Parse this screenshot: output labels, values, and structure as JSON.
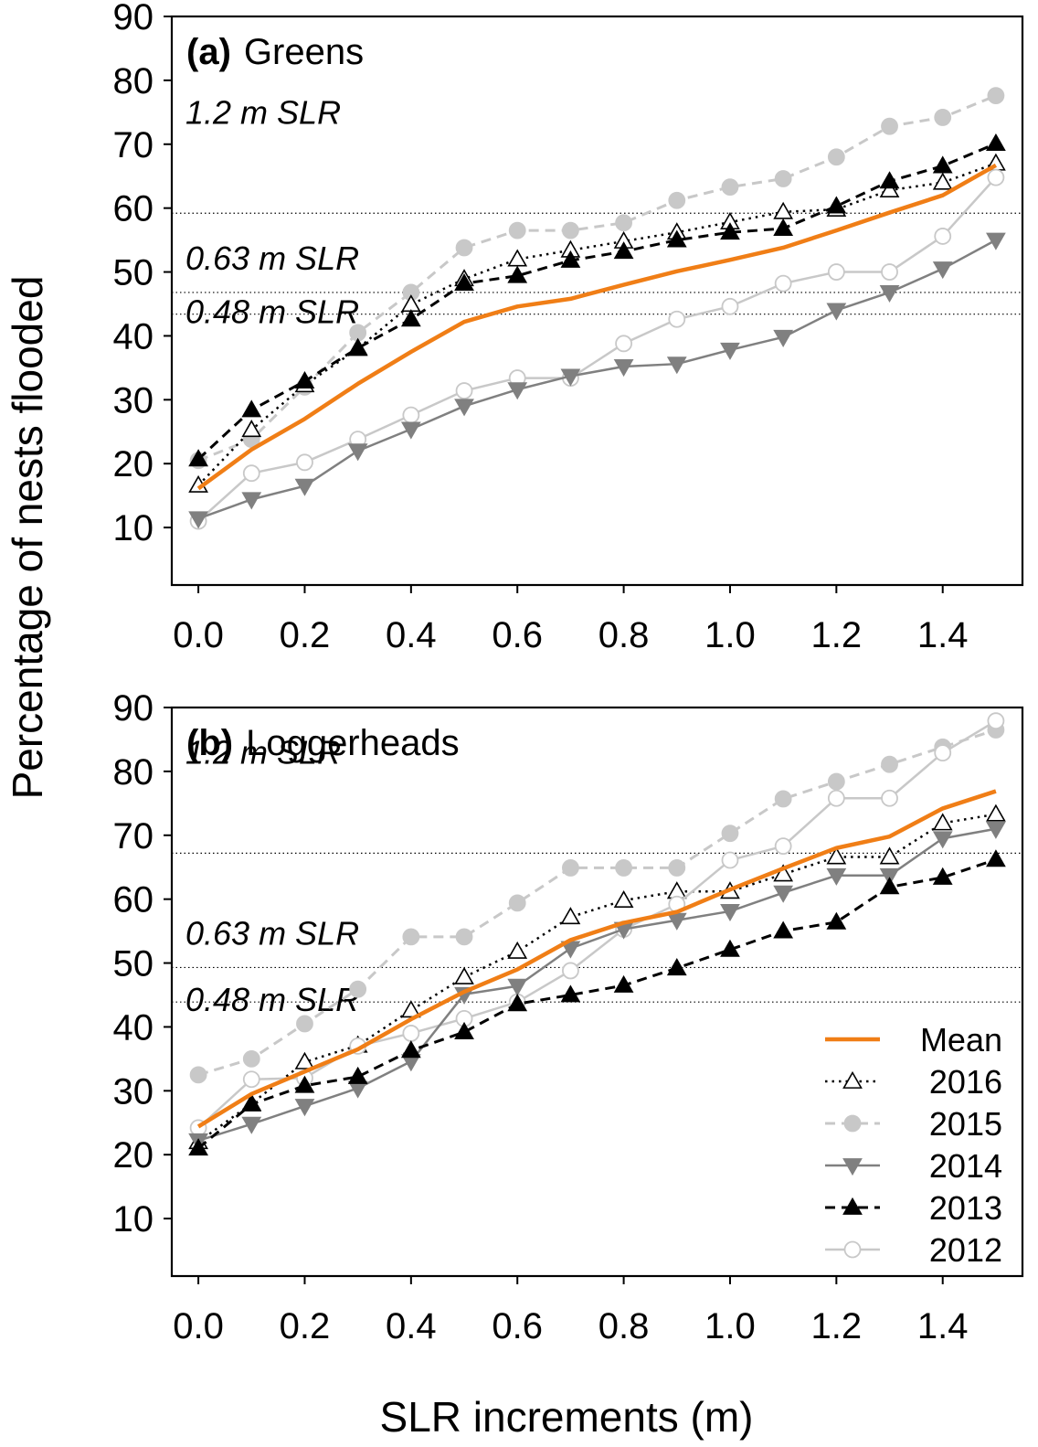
{
  "figure": {
    "ylabel": "Percentage of nests flooded",
    "xlabel": "SLR increments (m)"
  },
  "legend": {
    "placement": "bottom-right of panel (b)",
    "entries": [
      "Mean",
      "2016",
      "2015",
      "2014",
      "2013",
      "2012"
    ]
  },
  "chart_data": [
    {
      "type": "line",
      "panel_letter": "(a)",
      "panel_name": "Greens",
      "x": [
        0.0,
        0.1,
        0.2,
        0.3,
        0.4,
        0.5,
        0.6,
        0.7,
        0.8,
        0.9,
        1.0,
        1.1,
        1.2,
        1.3,
        1.4,
        1.5
      ],
      "xticks": [
        "0.0",
        "0.2",
        "0.4",
        "0.6",
        "0.8",
        "1.0",
        "1.2",
        "1.4"
      ],
      "yticks": [
        "10",
        "20",
        "30",
        "40",
        "50",
        "60",
        "70",
        "80",
        "90"
      ],
      "xlim": [
        -0.05,
        1.55
      ],
      "ylim": [
        1,
        90
      ],
      "grid": false,
      "reference_lines": [
        {
          "label": "1.2 m SLR",
          "y": 59.2
        },
        {
          "label": "0.63 m SLR",
          "y": 46.8
        },
        {
          "label": "0.48 m SLR",
          "y": 43.4
        }
      ],
      "series": [
        {
          "name": "2015",
          "style": "dashed",
          "color": "#c8c8c8",
          "marker": "filled-circle",
          "values": [
            20.5,
            23.8,
            32.0,
            40.5,
            46.8,
            53.8,
            56.5,
            56.5,
            57.7,
            61.2,
            63.3,
            64.6,
            68.0,
            72.8,
            74.2,
            77.6
          ]
        },
        {
          "name": "2016",
          "style": "dotted",
          "color": "#000000",
          "marker": "open-triangle-up",
          "values": [
            16.6,
            25.3,
            32.3,
            38.0,
            44.9,
            48.9,
            52.0,
            53.4,
            54.8,
            56.2,
            57.8,
            59.4,
            59.8,
            62.8,
            64.0,
            67.0
          ]
        },
        {
          "name": "2013",
          "style": "dashed",
          "color": "#000000",
          "marker": "filled-triangle-up",
          "values": [
            20.7,
            28.4,
            32.9,
            38.1,
            42.6,
            48.2,
            49.4,
            51.8,
            53.2,
            55.0,
            56.2,
            56.8,
            60.3,
            64.2,
            66.6,
            70.1
          ]
        },
        {
          "name": "2012",
          "style": "solid",
          "color": "#c8c8c8",
          "marker": "open-circle",
          "values": [
            11.0,
            18.5,
            20.2,
            23.8,
            27.6,
            31.4,
            33.4,
            33.4,
            38.8,
            42.6,
            44.6,
            48.2,
            50.0,
            50.0,
            55.6,
            64.8
          ]
        },
        {
          "name": "2014",
          "style": "solid",
          "color": "#808080",
          "marker": "filled-triangle-down",
          "values": [
            11.4,
            14.4,
            16.5,
            22.0,
            25.4,
            29.0,
            31.6,
            33.7,
            35.2,
            35.6,
            37.8,
            39.8,
            44.0,
            46.8,
            50.5,
            55.0
          ]
        },
        {
          "name": "Mean",
          "style": "solid-thick",
          "color": "#f07e16",
          "marker": "none",
          "values": [
            16.1,
            22.2,
            27.0,
            32.5,
            37.5,
            42.2,
            44.6,
            45.8,
            48.0,
            50.1,
            51.9,
            53.8,
            56.5,
            59.3,
            62.0,
            66.7
          ]
        }
      ]
    },
    {
      "type": "line",
      "panel_letter": "(b)",
      "panel_name": "Loggerheads",
      "x": [
        0.0,
        0.1,
        0.2,
        0.3,
        0.4,
        0.5,
        0.6,
        0.7,
        0.8,
        0.9,
        1.0,
        1.1,
        1.2,
        1.3,
        1.4,
        1.5
      ],
      "xticks": [
        "0.0",
        "0.2",
        "0.4",
        "0.6",
        "0.8",
        "1.0",
        "1.2",
        "1.4"
      ],
      "yticks": [
        "10",
        "20",
        "30",
        "40",
        "50",
        "60",
        "70",
        "80",
        "90"
      ],
      "xlim": [
        -0.05,
        1.55
      ],
      "ylim": [
        1,
        90
      ],
      "grid": false,
      "reference_lines": [
        {
          "label": "1.2 m SLR",
          "y": 67.2
        },
        {
          "label": "0.63 m SLR",
          "y": 49.3
        },
        {
          "label": "0.48 m SLR",
          "y": 43.9
        }
      ],
      "series": [
        {
          "name": "2015",
          "style": "dashed",
          "color": "#c8c8c8",
          "marker": "filled-circle",
          "values": [
            32.5,
            35.0,
            40.5,
            45.9,
            54.1,
            54.1,
            59.4,
            64.9,
            64.9,
            64.9,
            70.3,
            75.7,
            78.4,
            81.1,
            83.8,
            86.5
          ]
        },
        {
          "name": "2016",
          "style": "dotted",
          "color": "#000000",
          "marker": "open-triangle-up",
          "values": [
            22.0,
            28.0,
            34.5,
            37.1,
            42.6,
            47.8,
            51.8,
            57.2,
            59.8,
            61.2,
            61.2,
            63.9,
            66.6,
            66.6,
            71.9,
            73.3
          ]
        },
        {
          "name": "2012",
          "style": "solid",
          "color": "#c8c8c8",
          "marker": "open-circle",
          "values": [
            24.2,
            31.8,
            32.0,
            37.0,
            39.0,
            41.3,
            43.9,
            48.8,
            55.3,
            59.2,
            66.1,
            68.3,
            75.8,
            75.8,
            82.9,
            87.9
          ]
        },
        {
          "name": "2014",
          "style": "solid",
          "color": "#808080",
          "marker": "filled-triangle-down",
          "values": [
            22.2,
            24.8,
            27.6,
            30.4,
            34.6,
            45.1,
            46.4,
            52.3,
            55.3,
            56.7,
            58.1,
            61.0,
            63.7,
            63.7,
            69.5,
            71.0
          ]
        },
        {
          "name": "2013",
          "style": "dashed",
          "color": "#000000",
          "marker": "filled-triangle-up",
          "values": [
            21.0,
            27.9,
            30.8,
            32.2,
            36.3,
            39.2,
            43.6,
            45.0,
            46.5,
            49.2,
            52.1,
            55.0,
            56.4,
            61.9,
            63.4,
            66.2
          ]
        },
        {
          "name": "Mean",
          "style": "solid-thick",
          "color": "#f07e16",
          "marker": "none",
          "values": [
            24.4,
            29.5,
            33.0,
            36.5,
            41.2,
            45.5,
            49.0,
            53.6,
            56.3,
            58.0,
            61.5,
            64.8,
            68.0,
            69.8,
            74.2,
            76.9
          ]
        }
      ]
    }
  ]
}
